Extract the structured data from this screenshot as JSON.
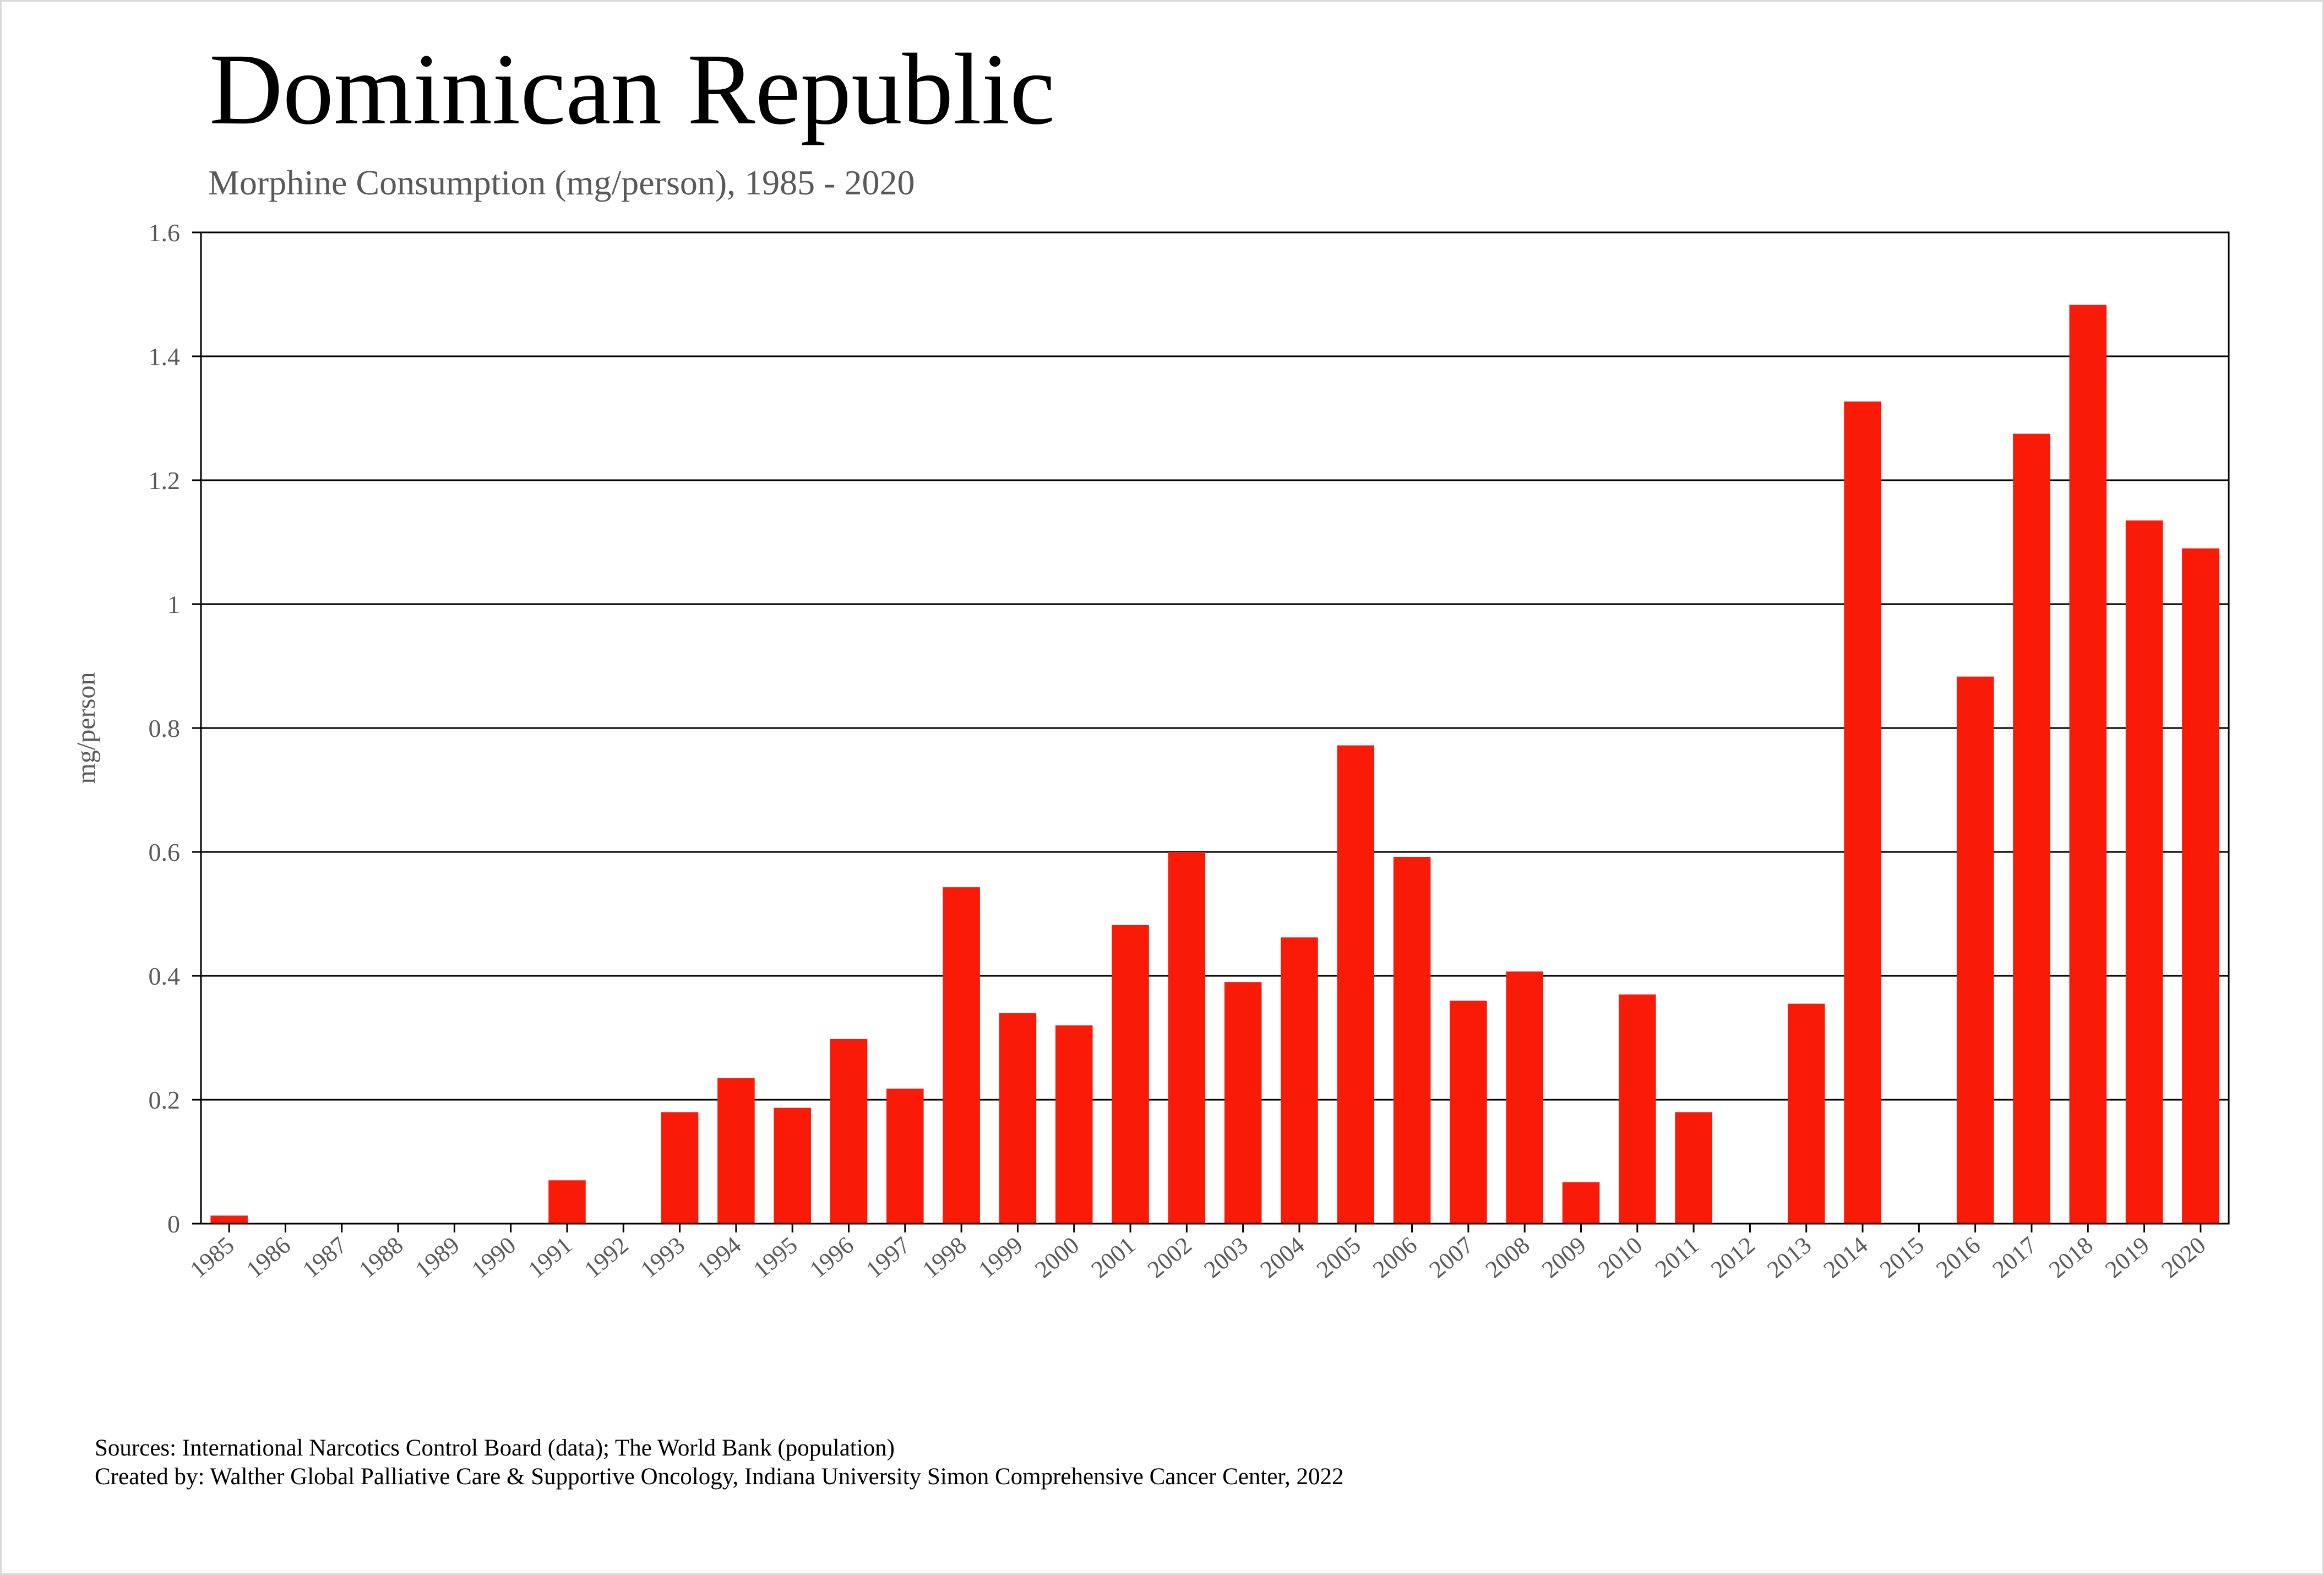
{
  "chart_data": {
    "type": "bar",
    "title": "Dominican Republic",
    "subtitle": "Morphine Consumption (mg/person), 1985 - 2020",
    "xlabel": "",
    "ylabel": "mg/person",
    "ylim": [
      0,
      1.6
    ],
    "ytick_labels": [
      "0",
      "0.2",
      "0.4",
      "0.6",
      "0.8",
      "1",
      "1.2",
      "1.4",
      "1.6"
    ],
    "grid": true,
    "bar_color": "#fa1a08",
    "categories": [
      "1985",
      "1986",
      "1987",
      "1988",
      "1989",
      "1990",
      "1991",
      "1992",
      "1993",
      "1994",
      "1995",
      "1996",
      "1997",
      "1998",
      "1999",
      "2000",
      "2001",
      "2002",
      "2003",
      "2004",
      "2005",
      "2006",
      "2007",
      "2008",
      "2009",
      "2010",
      "2011",
      "2012",
      "2013",
      "2014",
      "2015",
      "2016",
      "2017",
      "2018",
      "2019",
      "2020"
    ],
    "values": [
      0.013,
      0,
      0,
      0,
      0,
      0,
      0.07,
      0,
      0.18,
      0.235,
      0.187,
      0.298,
      0.218,
      0.543,
      0.34,
      0.32,
      0.482,
      0.6,
      0.39,
      0.462,
      0.772,
      0.592,
      0.36,
      0.407,
      0.067,
      0.37,
      0.18,
      0,
      0.355,
      1.327,
      0,
      0.883,
      1.275,
      1.483,
      1.135,
      1.09
    ]
  },
  "footer": {
    "sources": "Sources: International Narcotics Control Board (data); The World Bank (population)",
    "created_by": "Created by: Walther  Global Palliative Care & Supportive Oncology, Indiana University Simon Comprehensive Cancer Center, 2022"
  }
}
